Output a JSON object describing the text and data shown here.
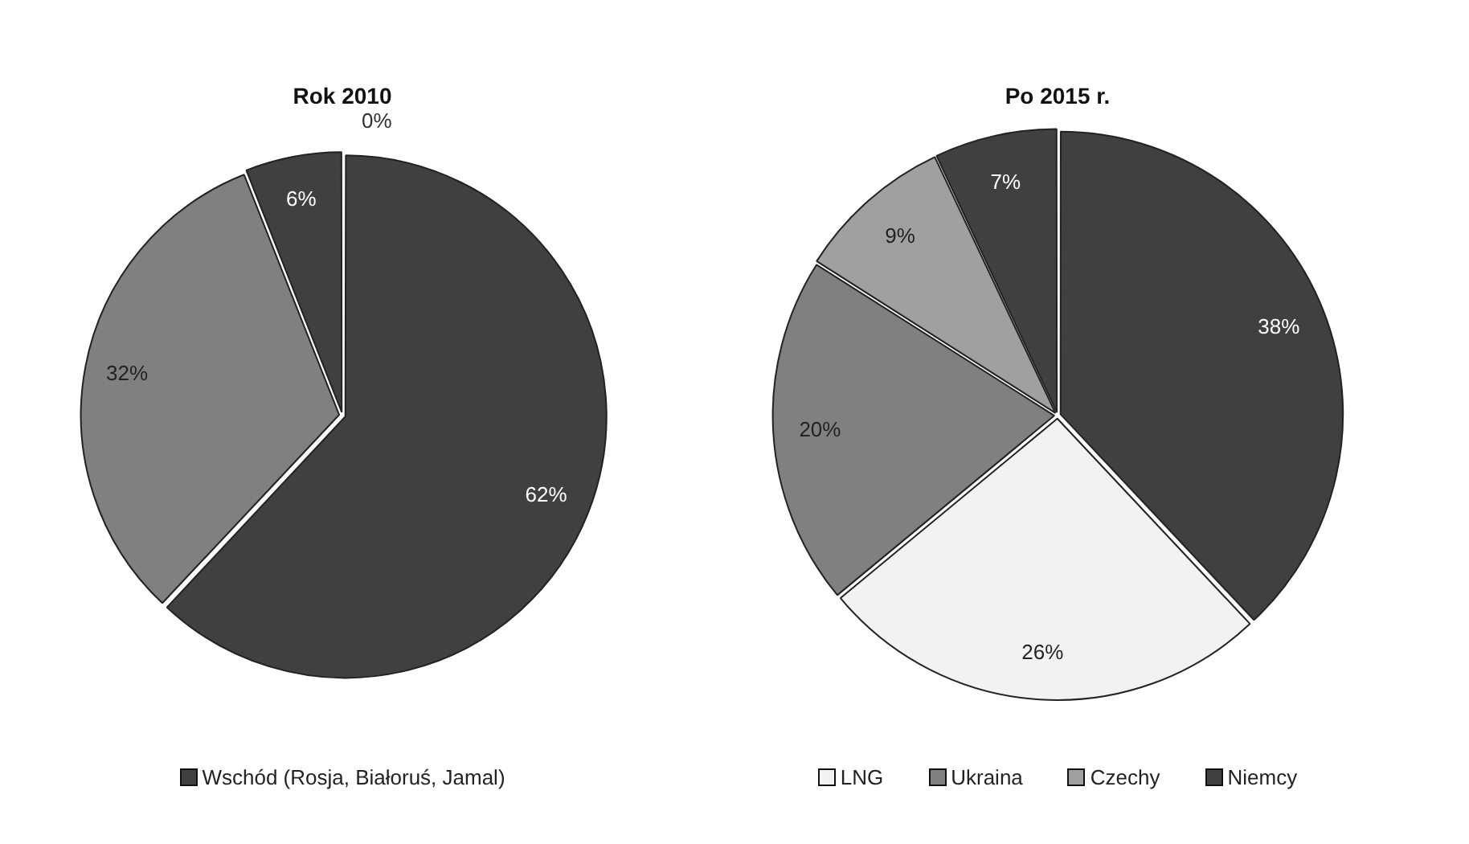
{
  "chart_data": [
    {
      "type": "pie",
      "title": "Rok 2010",
      "categories": [
        "Wschód (Rosja, Białoruś, Jamal)",
        null,
        null,
        null
      ],
      "values": [
        62,
        32,
        6,
        0
      ],
      "value_labels": [
        "62%",
        "32%",
        "6%",
        "0%"
      ],
      "colors": [
        "#404040",
        "#808080",
        "#404040",
        "#a0a0a0"
      ],
      "legend": "bottom"
    },
    {
      "type": "pie",
      "title": "Po 2015 r.",
      "categories": [
        null,
        "LNG",
        "Ukraina",
        "Czechy",
        "Niemcy"
      ],
      "values": [
        38,
        26,
        20,
        9,
        7
      ],
      "value_labels": [
        "38%",
        "26%",
        "20%",
        "9%",
        "7%"
      ],
      "colors": [
        "#404040",
        "#f2f2f2",
        "#808080",
        "#a0a0a0",
        "#404040"
      ],
      "legend": "bottom"
    }
  ]
}
